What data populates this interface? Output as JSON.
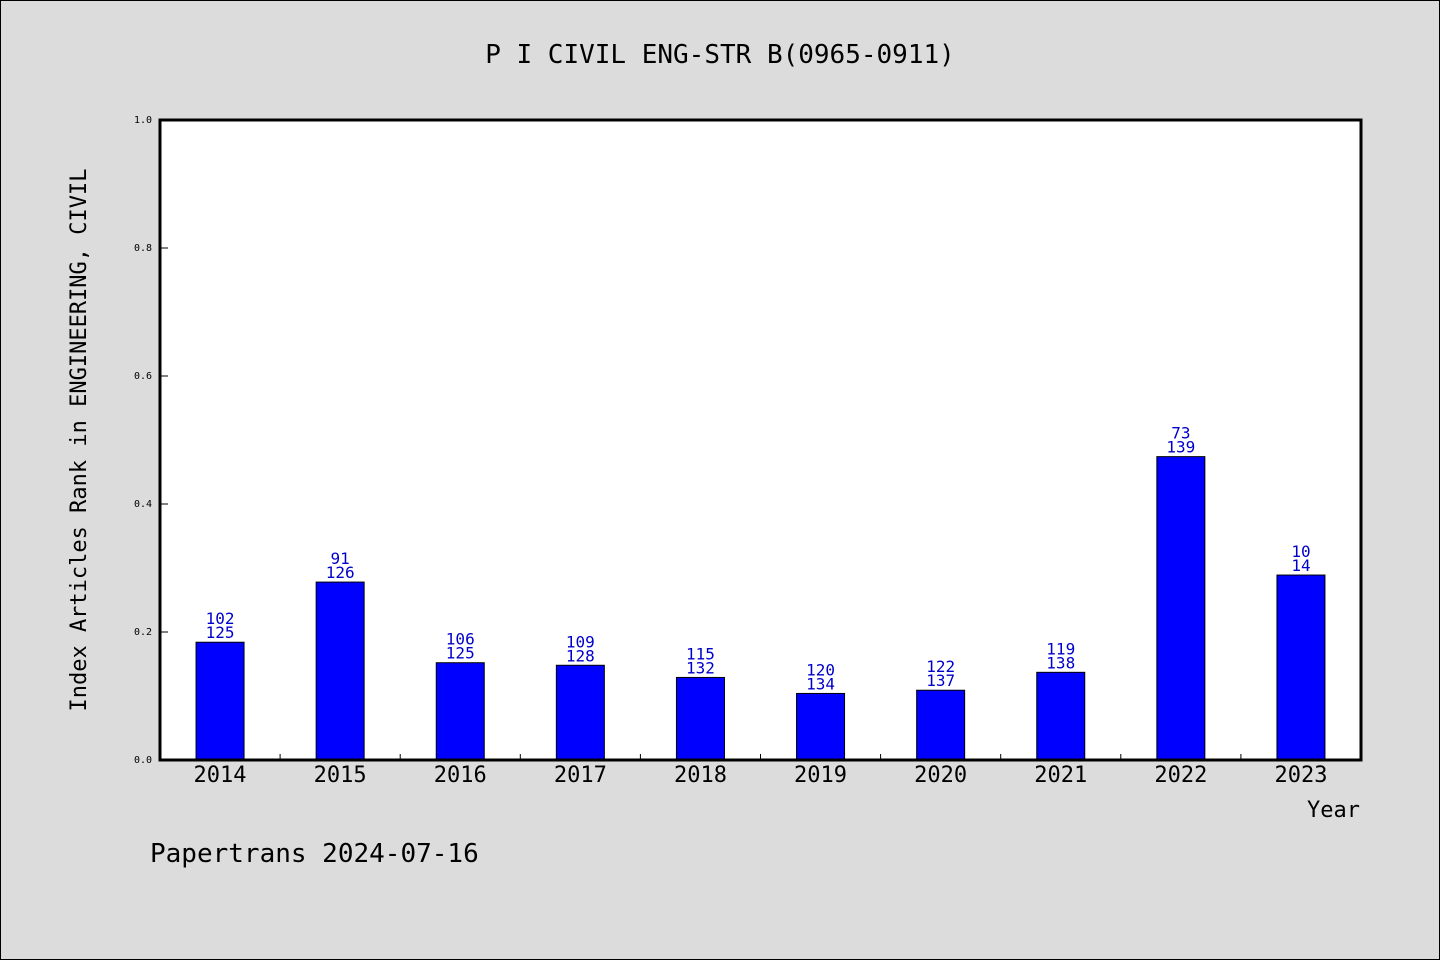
{
  "chart_data": {
    "type": "bar",
    "title": "P I CIVIL ENG-STR B(0965-0911)",
    "xlabel": "Year",
    "ylabel": "Index Articles Rank in ENGINEERING, CIVIL",
    "ylim": [
      0,
      1.0
    ],
    "yticks": [
      "0.0",
      "0.2",
      "0.4",
      "0.6",
      "0.8",
      "1.0"
    ],
    "categories": [
      "2014",
      "2015",
      "2016",
      "2017",
      "2018",
      "2019",
      "2020",
      "2021",
      "2022",
      "2023"
    ],
    "values": [
      0.184,
      0.278,
      0.152,
      0.148,
      0.129,
      0.104,
      0.109,
      0.137,
      0.474,
      0.289
    ],
    "labels_top": [
      "102",
      "91",
      "106",
      "109",
      "115",
      "120",
      "122",
      "119",
      "73",
      "10"
    ],
    "labels_bottom": [
      "125",
      "126",
      "125",
      "128",
      "132",
      "134",
      "137",
      "138",
      "139",
      "14"
    ],
    "bar_color": "#0000ff",
    "label_color": "#0000cc",
    "grid": false
  },
  "footer": "Papertrans 2024-07-16"
}
